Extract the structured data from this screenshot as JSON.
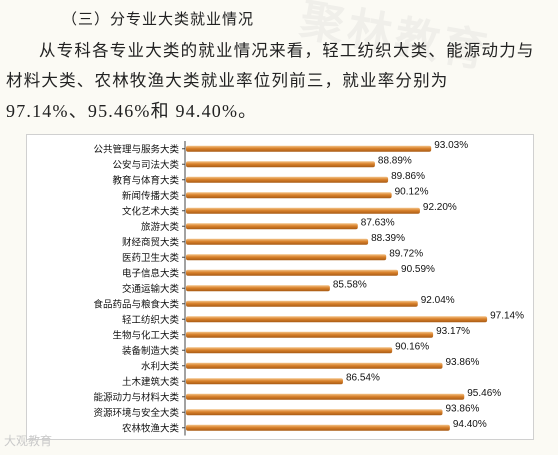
{
  "heading": "（三）分专业大类就业情况",
  "paragraph": {
    "text": "从专科各专业大类的就业情况来看，轻工纺织大类、能源动力与材料大类、农林牧渔大类就业率位列前三，就业率分别为",
    "numbers": "97.14%、95.46%和 94.40%。"
  },
  "watermark": "聚林教育",
  "logo": "大观教育",
  "colors": {
    "bar": "#d9822b",
    "bar_highlight": "#f4c48a",
    "bar_shadow": "#a85a14"
  },
  "chart_data": {
    "type": "bar",
    "orientation": "horizontal",
    "categories": [
      "公共管理与服务大类",
      "公安与司法大类",
      "教育与体育大类",
      "新闻传播大类",
      "文化艺术大类",
      "旅游大类",
      "财经商贸大类",
      "医药卫生大类",
      "电子信息大类",
      "交通运输大类",
      "食品药品与粮食大类",
      "轻工纺织大类",
      "生物与化工大类",
      "装备制造大类",
      "水利大类",
      "土木建筑大类",
      "能源动力与材料大类",
      "资源环境与安全大类",
      "农林牧渔大类"
    ],
    "values": [
      93.03,
      88.89,
      89.86,
      90.12,
      92.2,
      87.63,
      88.39,
      89.72,
      90.59,
      85.58,
      92.04,
      97.14,
      93.17,
      90.16,
      93.86,
      86.54,
      95.46,
      93.86,
      94.4
    ],
    "labels": [
      "93.03%",
      "88.89%",
      "89.86%",
      "90.12%",
      "92.20%",
      "87.63%",
      "88.39%",
      "89.72%",
      "90.59%",
      "85.58%",
      "92.04%",
      "97.14%",
      "93.17%",
      "90.16%",
      "93.86%",
      "86.54%",
      "95.46%",
      "93.86%",
      "94.40%"
    ],
    "xlim": [
      75,
      100
    ],
    "grid": false,
    "legend": "none"
  }
}
